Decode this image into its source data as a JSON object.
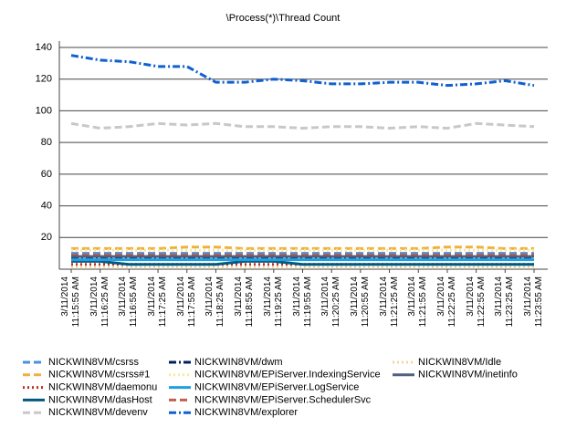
{
  "chart_data": {
    "type": "line",
    "title": "\\Process(*)\\Thread Count",
    "categories": [
      "3/11/2014 11:15:55 AM",
      "3/11/2014 11:16:25 AM",
      "3/11/2014 11:16:55 AM",
      "3/11/2014 11:17:25 AM",
      "3/11/2014 11:17:55 AM",
      "3/11/2014 11:18:25 AM",
      "3/11/2014 11:18:55 AM",
      "3/11/2014 11:19:25 AM",
      "3/11/2014 11:19:55 AM",
      "3/11/2014 11:20:25 AM",
      "3/11/2014 11:20:55 AM",
      "3/11/2014 11:21:25 AM",
      "3/11/2014 11:21:55 AM",
      "3/11/2014 11:22:25 AM",
      "3/11/2014 11:22:55 AM",
      "3/11/2014 11:23:25 AM",
      "3/11/2014 11:23:55 AM"
    ],
    "ylim": [
      0,
      140
    ],
    "yticks": [
      20,
      40,
      60,
      80,
      100,
      120,
      140
    ],
    "grid": true,
    "series": [
      {
        "name": "NICKWIN8VM/csrss",
        "color": "#4a90e2",
        "dash": "dashed",
        "values": [
          10,
          10,
          10,
          10,
          10,
          10,
          10,
          10,
          10,
          10,
          10,
          10,
          10,
          10,
          10,
          10,
          10
        ]
      },
      {
        "name": "NICKWIN8VM/csrss#1",
        "color": "#f0b040",
        "dash": "dashed",
        "values": [
          13,
          13,
          13,
          13,
          14,
          14,
          13,
          13,
          13,
          13,
          13,
          13,
          13,
          14,
          14,
          13,
          13
        ]
      },
      {
        "name": "NICKWIN8VM/daemonu",
        "color": "#c03020",
        "dash": "dotted",
        "values": [
          3,
          3,
          3,
          3,
          3,
          3,
          3,
          3,
          3,
          3,
          3,
          3,
          3,
          3,
          3,
          3,
          3
        ]
      },
      {
        "name": "NICKWIN8VM/dasHost",
        "color": "#005a80",
        "dash": "solid",
        "values": [
          5,
          5,
          3,
          3,
          3,
          3,
          5,
          5,
          3,
          3,
          3,
          3,
          3,
          3,
          3,
          3,
          3
        ]
      },
      {
        "name": "NICKWIN8VM/devenv",
        "color": "#c8c8c8",
        "dash": "dashed",
        "values": [
          92,
          89,
          90,
          92,
          91,
          92,
          90,
          90,
          89,
          90,
          90,
          89,
          90,
          89,
          92,
          91,
          90
        ]
      },
      {
        "name": "NICKWIN8VM/dwm",
        "color": "#002060",
        "dash": "dashdot",
        "values": [
          7,
          7,
          7,
          7,
          7,
          7,
          7,
          7,
          7,
          7,
          7,
          7,
          7,
          7,
          7,
          7,
          7
        ]
      },
      {
        "name": "NICKWIN8VM/EPiServer.IndexingService",
        "color": "#f8e8a0",
        "dash": "dotted",
        "values": [
          12,
          12,
          12,
          12,
          12,
          12,
          12,
          12,
          12,
          12,
          12,
          12,
          12,
          12,
          12,
          12,
          12
        ]
      },
      {
        "name": "NICKWIN8VM/EPiServer.LogService",
        "color": "#20a0e0",
        "dash": "solid",
        "values": [
          6,
          6,
          6,
          6,
          6,
          6,
          6,
          6,
          6,
          6,
          6,
          6,
          6,
          6,
          6,
          6,
          6
        ]
      },
      {
        "name": "NICKWIN8VM/EPiServer.SchedulerSvc",
        "color": "#c06050",
        "dash": "dashed",
        "values": [
          9,
          9,
          9,
          9,
          9,
          9,
          9,
          9,
          9,
          9,
          9,
          9,
          9,
          9,
          9,
          9,
          9
        ]
      },
      {
        "name": "NICKWIN8VM/explorer",
        "color": "#1060d0",
        "dash": "dashdot",
        "values": [
          135,
          132,
          131,
          128,
          128,
          118,
          118,
          120,
          119,
          117,
          117,
          118,
          118,
          116,
          117,
          119,
          116
        ]
      },
      {
        "name": "NICKWIN8VM/Idle",
        "color": "#f0d8a0",
        "dash": "dotted",
        "values": [
          1,
          1,
          1,
          1,
          1,
          1,
          1,
          1,
          1,
          1,
          1,
          1,
          1,
          1,
          1,
          1,
          1
        ]
      },
      {
        "name": "NICKWIN8VM/inetinfo",
        "color": "#506080",
        "dash": "solid",
        "values": [
          8,
          8,
          8,
          8,
          8,
          8,
          8,
          8,
          8,
          8,
          8,
          8,
          8,
          8,
          8,
          8,
          8
        ]
      }
    ]
  }
}
